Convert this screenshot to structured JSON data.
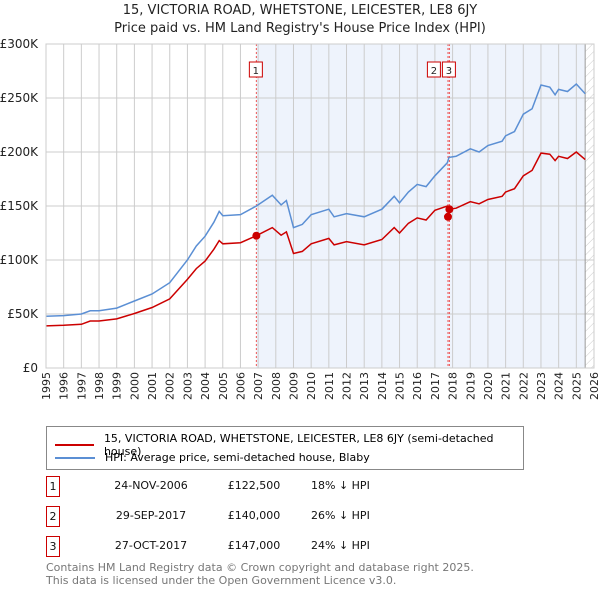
{
  "chart_data": {
    "type": "line",
    "title": "15, VICTORIA ROAD, WHETSTONE, LEICESTER, LE8 6JY",
    "subtitle": "Price paid vs. HM Land Registry's House Price Index (HPI)",
    "xlim": [
      1995,
      2026
    ],
    "ylim": [
      0,
      300000
    ],
    "grid": true,
    "x_ticks": [
      "1995",
      "1996",
      "1997",
      "1998",
      "1999",
      "2000",
      "2001",
      "2002",
      "2003",
      "2004",
      "2005",
      "2006",
      "2007",
      "2008",
      "2009",
      "2010",
      "2011",
      "2012",
      "2013",
      "2014",
      "2015",
      "2016",
      "2017",
      "2018",
      "2019",
      "2020",
      "2021",
      "2022",
      "2023",
      "2024",
      "2025",
      "2026"
    ],
    "y_ticks": [
      {
        "v": 0,
        "label": "£0"
      },
      {
        "v": 50000,
        "label": "£50K"
      },
      {
        "v": 100000,
        "label": "£100K"
      },
      {
        "v": 150000,
        "label": "£150K"
      },
      {
        "v": 200000,
        "label": "£200K"
      },
      {
        "v": 250000,
        "label": "£250K"
      },
      {
        "v": 300000,
        "label": "£300K"
      }
    ],
    "shaded_range": [
      2006.9,
      2025.5
    ],
    "series": [
      {
        "name": "15, VICTORIA ROAD, WHETSTONE, LEICESTER, LE8 6JY (semi-detached house)",
        "color": "#cc0000",
        "x": [
          1995,
          1996,
          1997,
          1997.5,
          1998,
          1999,
          2000,
          2001,
          2002,
          2003,
          2003.5,
          2004,
          2004.5,
          2004.8,
          2005,
          2006,
          2006.9,
          2007.8,
          2008.3,
          2008.6,
          2009,
          2009.5,
          2010,
          2011,
          2011.3,
          2012,
          2013,
          2014,
          2014.7,
          2015,
          2015.5,
          2016,
          2016.5,
          2017,
          2017.7,
          2017.8,
          2018.2,
          2019,
          2019.5,
          2020,
          2020.8,
          2021,
          2021.5,
          2022,
          2022.5,
          2023,
          2023.5,
          2023.8,
          2024,
          2024.5,
          2025,
          2025.5
        ],
        "y": [
          39000,
          39500,
          40500,
          43500,
          43500,
          45500,
          50500,
          56000,
          64000,
          82000,
          92000,
          99000,
          110000,
          118000,
          115000,
          116000,
          122500,
          130000,
          123000,
          126000,
          106000,
          108000,
          115000,
          120000,
          114000,
          117000,
          114000,
          119000,
          130000,
          125000,
          134000,
          139000,
          137000,
          146000,
          150000,
          147000,
          148000,
          154000,
          152000,
          156000,
          159000,
          163000,
          166000,
          178000,
          183000,
          199000,
          198000,
          192000,
          196000,
          194000,
          200000,
          193000
        ]
      },
      {
        "name": "HPI: Average price, semi-detached house, Blaby",
        "color": "#5b8fd4",
        "x": [
          1995,
          1996,
          1997,
          1997.5,
          1998,
          1999,
          2000,
          2001,
          2002,
          2003,
          2003.5,
          2004,
          2004.5,
          2004.8,
          2005,
          2006,
          2006.9,
          2007.8,
          2008.3,
          2008.6,
          2009,
          2009.5,
          2010,
          2011,
          2011.3,
          2012,
          2013,
          2014,
          2014.7,
          2015,
          2015.5,
          2016,
          2016.5,
          2017,
          2017.7,
          2017.8,
          2018.2,
          2019,
          2019.5,
          2020,
          2020.8,
          2021,
          2021.5,
          2022,
          2022.5,
          2023,
          2023.5,
          2023.8,
          2024,
          2024.5,
          2025,
          2025.5
        ],
        "y": [
          48000,
          48500,
          50000,
          53000,
          53000,
          55500,
          62000,
          68500,
          79000,
          100000,
          113000,
          122000,
          135000,
          145000,
          141000,
          142000,
          150000,
          160000,
          151000,
          155000,
          130000,
          133000,
          142000,
          147000,
          140000,
          143000,
          140000,
          147000,
          159000,
          153000,
          163000,
          170000,
          168000,
          178000,
          190000,
          195000,
          196000,
          203000,
          200000,
          206000,
          210000,
          215000,
          219000,
          235000,
          240000,
          262000,
          260000,
          253000,
          258000,
          256000,
          263000,
          254000
        ]
      }
    ],
    "sales": [
      {
        "num": "1",
        "date": "24-NOV-2006",
        "x": 2006.9,
        "price": 122500,
        "price_label": "£122,500",
        "hpi": "18% ↓ HPI"
      },
      {
        "num": "2",
        "date": "29-SEP-2017",
        "x": 2017.74,
        "price": 140000,
        "price_label": "£140,000",
        "hpi": "26% ↓ HPI"
      },
      {
        "num": "3",
        "date": "27-OCT-2017",
        "x": 2017.82,
        "price": 147000,
        "price_label": "£147,000",
        "hpi": "24% ↓ HPI"
      }
    ]
  },
  "footer": {
    "line1": "Contains HM Land Registry data © Crown copyright and database right 2025.",
    "line2": "This data is licensed under the Open Government Licence v3.0."
  }
}
